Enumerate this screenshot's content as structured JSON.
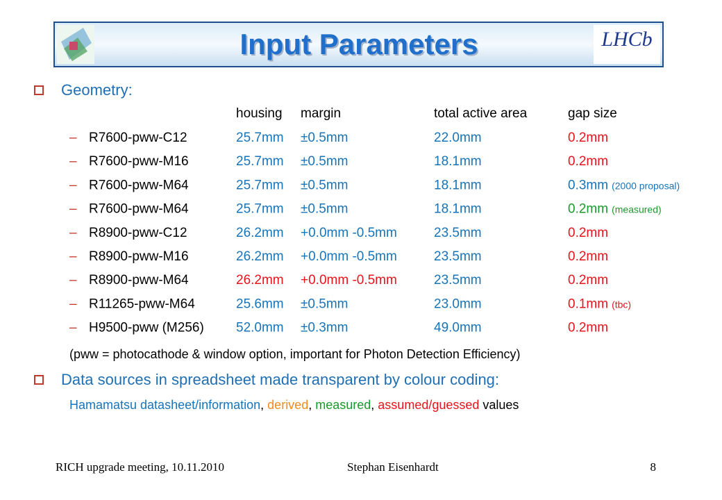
{
  "header": {
    "title": "Input Parameters",
    "logo": "LHCb"
  },
  "geometry": {
    "heading": "Geometry:",
    "columns": [
      "housing",
      "margin",
      "total active area",
      "gap size"
    ],
    "rows": [
      {
        "name": "R7600-pww-C12",
        "cells": [
          {
            "text": "25.7mm",
            "color": "#1874b8"
          },
          {
            "text": "±0.5mm",
            "color": "#1874b8"
          },
          {
            "text": "22.0mm",
            "color": "#1874b8"
          },
          {
            "text": "0.2mm",
            "color": "#e8141b"
          }
        ]
      },
      {
        "name": "R7600-pww-M16",
        "cells": [
          {
            "text": "25.7mm",
            "color": "#1874b8"
          },
          {
            "text": "±0.5mm",
            "color": "#1874b8"
          },
          {
            "text": "18.1mm",
            "color": "#1874b8"
          },
          {
            "text": "0.2mm",
            "color": "#e8141b"
          }
        ]
      },
      {
        "name": "R7600-pww-M64",
        "cells": [
          {
            "text": "25.7mm",
            "color": "#1874b8"
          },
          {
            "text": "±0.5mm",
            "color": "#1874b8"
          },
          {
            "text": "18.1mm",
            "color": "#1874b8"
          },
          {
            "text": "0.3mm",
            "color": "#1874b8",
            "note": "(2000 proposal)"
          }
        ]
      },
      {
        "name": "R7600-pww-M64",
        "cells": [
          {
            "text": "25.7mm",
            "color": "#1874b8"
          },
          {
            "text": "±0.5mm",
            "color": "#1874b8"
          },
          {
            "text": "18.1mm",
            "color": "#1874b8"
          },
          {
            "text": "0.2mm",
            "color": "#1a9a2a",
            "note": "(measured)"
          }
        ]
      },
      {
        "name": "R8900-pww-C12",
        "cells": [
          {
            "text": "26.2mm",
            "color": "#1874b8"
          },
          {
            "text": "+0.0mm -0.5mm",
            "color": "#1874b8"
          },
          {
            "text": "23.5mm",
            "color": "#1874b8"
          },
          {
            "text": "0.2mm",
            "color": "#e8141b"
          }
        ]
      },
      {
        "name": "R8900-pww-M16",
        "cells": [
          {
            "text": "26.2mm",
            "color": "#1874b8"
          },
          {
            "text": "+0.0mm -0.5mm",
            "color": "#1874b8"
          },
          {
            "text": "23.5mm",
            "color": "#1874b8"
          },
          {
            "text": "0.2mm",
            "color": "#e8141b"
          }
        ]
      },
      {
        "name": "R8900-pww-M64",
        "cells": [
          {
            "text": "26.2mm",
            "color": "#e8141b"
          },
          {
            "text": "+0.0mm -0.5mm",
            "color": "#e8141b"
          },
          {
            "text": "23.5mm",
            "color": "#1874b8"
          },
          {
            "text": "0.2mm",
            "color": "#e8141b"
          }
        ]
      },
      {
        "name": "R11265-pww-M64",
        "cells": [
          {
            "text": "25.6mm",
            "color": "#1874b8"
          },
          {
            "text": "±0.5mm",
            "color": "#1874b8"
          },
          {
            "text": "23.0mm",
            "color": "#1874b8"
          },
          {
            "text": "0.1mm",
            "color": "#e8141b",
            "note": "(tbc)"
          }
        ]
      },
      {
        "name": "H9500-pww (M256)",
        "cells": [
          {
            "text": "52.0mm",
            "color": "#1874b8"
          },
          {
            "text": "±0.3mm",
            "color": "#1874b8"
          },
          {
            "text": "49.0mm",
            "color": "#1874b8"
          },
          {
            "text": "0.2mm",
            "color": "#e8141b"
          }
        ]
      }
    ],
    "note": "(pww = photocathode & window option, important for Photon Detection Efficiency)"
  },
  "sources": {
    "heading": "Data sources in spreadsheet made transparent by colour coding:",
    "items": [
      {
        "text": "Hamamatsu datasheet/information",
        "color": "#1874b8"
      },
      {
        "text": ", ",
        "color": "#000000"
      },
      {
        "text": "derived",
        "color": "#f08a1d"
      },
      {
        "text": ", ",
        "color": "#000000"
      },
      {
        "text": "measured",
        "color": "#1a9a2a"
      },
      {
        "text": ", ",
        "color": "#000000"
      },
      {
        "text": "assumed/guessed",
        "color": "#e8141b"
      },
      {
        "text": " values",
        "color": "#000000"
      }
    ]
  },
  "footer": {
    "left": "RICH upgrade meeting, 10.11.2010",
    "center": "Stephan Eisenhardt",
    "page": "8"
  }
}
